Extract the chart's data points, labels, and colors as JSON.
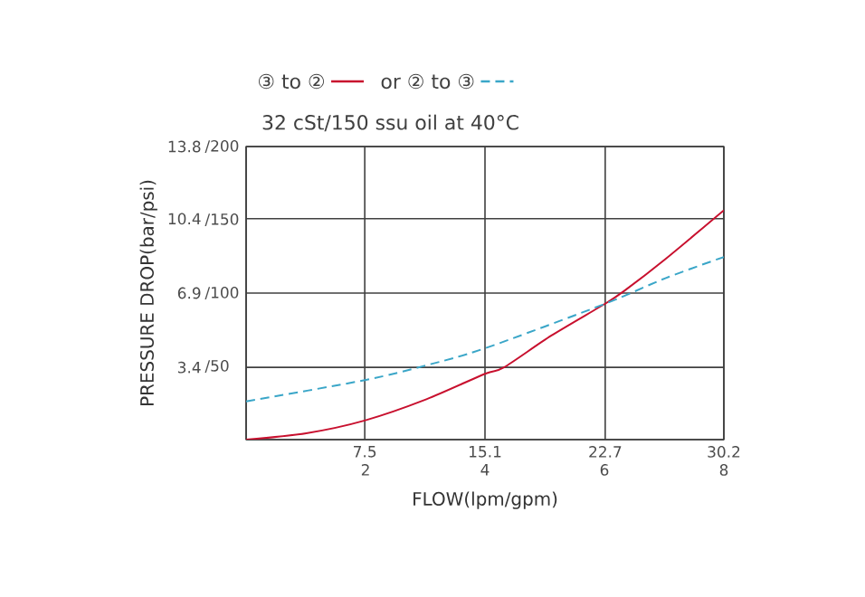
{
  "chart_data": {
    "type": "line",
    "title": "32 cSt/150 ssu oil at 40°C",
    "xlabel": "FLOW(lpm/gpm)",
    "ylabel": "PRESSURE DROP(bar/psi)",
    "xlim": [
      0,
      30.2
    ],
    "ylim": [
      0,
      13.8
    ],
    "x2lim": [
      0,
      8
    ],
    "y2lim": [
      0,
      200
    ],
    "xticks": [
      {
        "value": 0,
        "label": null
      },
      7.5,
      15.1,
      22.7,
      30.2
    ],
    "x2ticks": [
      2,
      4,
      6,
      8
    ],
    "yticks": [
      {
        "value": 0,
        "label": null
      },
      3.4,
      6.9,
      10.4,
      13.8
    ],
    "y2ticks": [
      {
        "value": 50,
        "label": "/50"
      },
      {
        "value": 100,
        "label": "/100"
      },
      {
        "value": 150,
        "label": "/150"
      },
      {
        "value": 200,
        "label": "/200"
      }
    ],
    "grid": true,
    "legend": "top",
    "series": [
      {
        "name": "③ to ②",
        "color": "#c8102e",
        "line_style": "solid",
        "x": [
          0,
          3.8,
          7.5,
          11.4,
          15.1,
          16.3,
          19.3,
          22.7,
          23.9,
          26.5,
          30.2
        ],
        "values": [
          0,
          0.3,
          0.9,
          1.9,
          3.1,
          3.4,
          4.9,
          6.4,
          7.0,
          8.5,
          10.8
        ]
      },
      {
        "name": "or ② to ③",
        "color": "#3aa6c8",
        "line_style": "dashed",
        "x": [
          0,
          7.5,
          11.4,
          15.1,
          22.7,
          26.5,
          30.2
        ],
        "values": [
          1.8,
          2.8,
          3.5,
          4.3,
          6.4,
          7.6,
          8.6
        ]
      }
    ]
  }
}
